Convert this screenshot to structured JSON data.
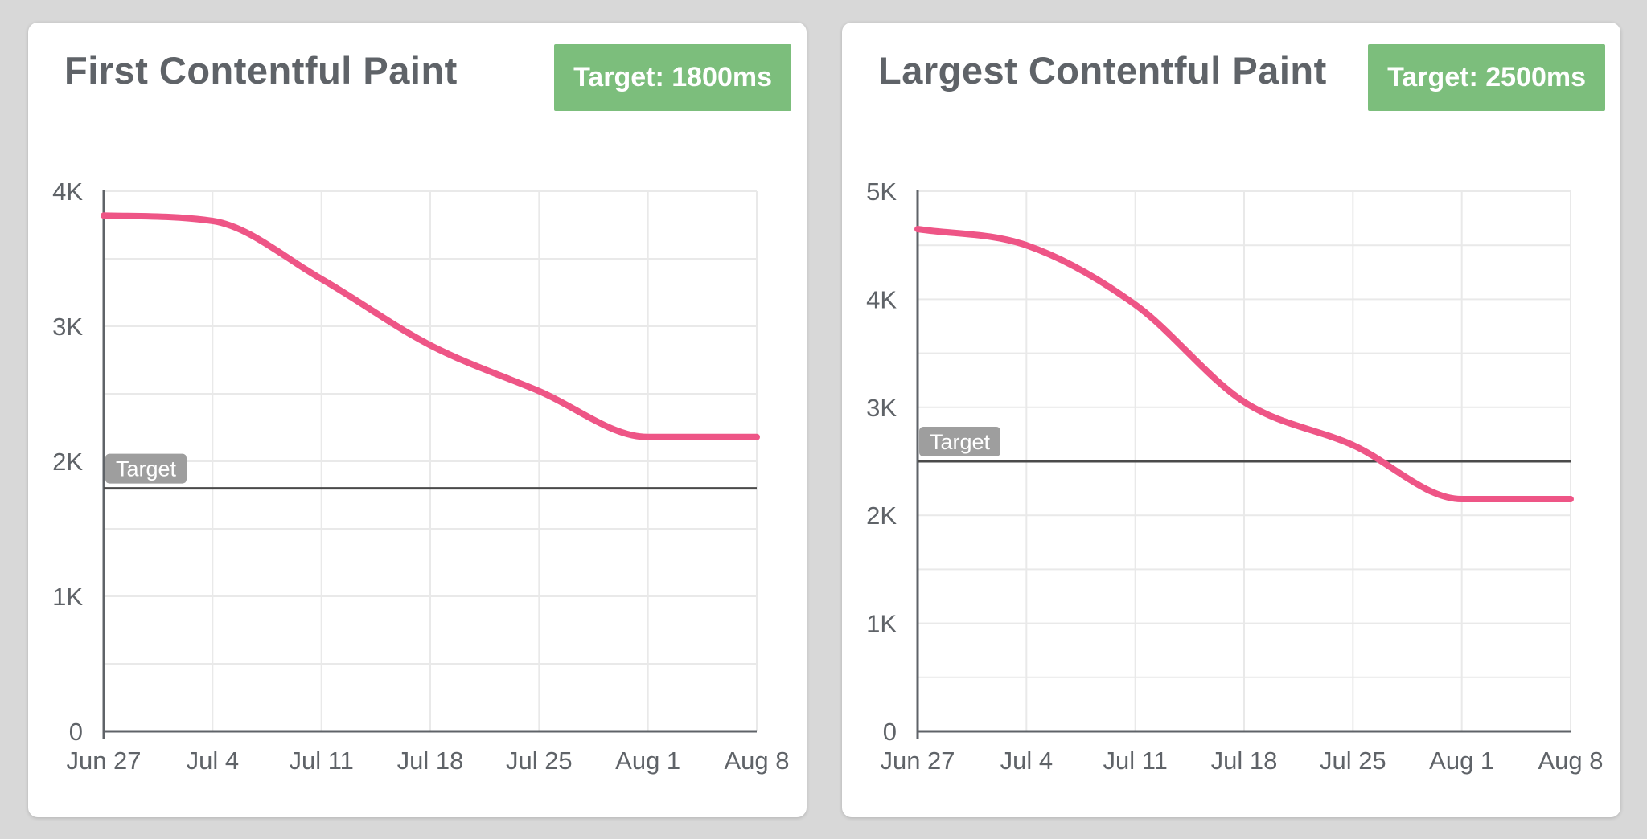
{
  "colors": {
    "background": "#d8d8d8",
    "card": "#ffffff",
    "title": "#5f6368",
    "badge_bg": "#7cbe7c",
    "badge_text": "#ffffff",
    "grid": "#e9e9e9",
    "axis": "#5f6368",
    "tick_text": "#5f6368",
    "target_line": "#4a4a4a",
    "chip_bg": "#9e9e9e",
    "chip_text": "#ffffff",
    "line": "#ee5586"
  },
  "chart_data": [
    {
      "type": "line",
      "title": "First Contentful Paint",
      "badge_label": "Target: 1800ms",
      "target": {
        "label": "Target",
        "value": 1800
      },
      "x": [
        "Jun 27",
        "Jul 4",
        "Jul 11",
        "Jul 18",
        "Jul 25",
        "Aug 1",
        "Aug 8"
      ],
      "series": [
        {
          "name": "First Contentful Paint (ms)",
          "values": [
            3820,
            3780,
            3350,
            2860,
            2520,
            2180,
            2180
          ]
        }
      ],
      "ylim": [
        0,
        4000
      ],
      "yticks": [
        {
          "value": 0,
          "label": "0"
        },
        {
          "value": 1000,
          "label": "1K"
        },
        {
          "value": 2000,
          "label": "2K"
        },
        {
          "value": 3000,
          "label": "3K"
        },
        {
          "value": 4000,
          "label": "4K"
        }
      ],
      "grid": true,
      "legend": "none",
      "line_color": "#ee5586"
    },
    {
      "type": "line",
      "title": "Largest Contentful Paint",
      "badge_label": "Target: 2500ms",
      "target": {
        "label": "Target",
        "value": 2500
      },
      "x": [
        "Jun 27",
        "Jul 4",
        "Jul 11",
        "Jul 18",
        "Jul 25",
        "Aug 1",
        "Aug 8"
      ],
      "series": [
        {
          "name": "Largest Contentful Paint (ms)",
          "values": [
            4650,
            4500,
            3950,
            3050,
            2650,
            2150,
            2150
          ]
        }
      ],
      "ylim": [
        0,
        5000
      ],
      "yticks": [
        {
          "value": 0,
          "label": "0"
        },
        {
          "value": 1000,
          "label": "1K"
        },
        {
          "value": 2000,
          "label": "2K"
        },
        {
          "value": 3000,
          "label": "3K"
        },
        {
          "value": 4000,
          "label": "4K"
        },
        {
          "value": 5000,
          "label": "5K"
        }
      ],
      "grid": true,
      "legend": "none",
      "line_color": "#ee5586"
    }
  ]
}
